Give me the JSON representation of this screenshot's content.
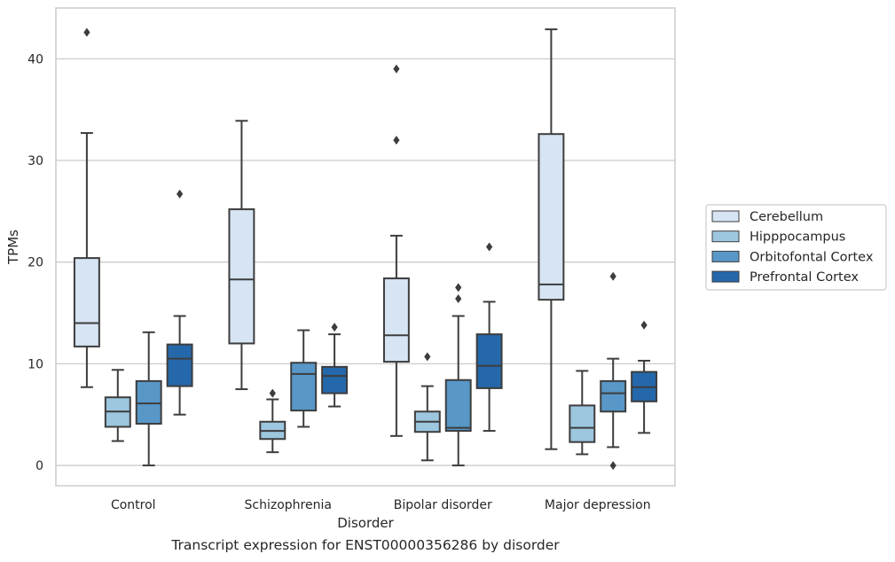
{
  "caption": "Transcript expression for ENST00000356286 by disorder",
  "chart_data": {
    "type": "box",
    "xlabel": "Disorder",
    "ylabel": "TPMs",
    "ylim": [
      -2,
      45
    ],
    "yticks": [
      0,
      10,
      20,
      30,
      40
    ],
    "grid": "horizontal",
    "legend_position": "right",
    "categories": [
      "Control",
      "Schizophrenia",
      "Bipolar disorder",
      "Major depression"
    ],
    "series": [
      {
        "name": "Cerebellum",
        "color": "#d6e4f3",
        "boxes": [
          {
            "whisker_low": 7.7,
            "q1": 11.7,
            "median": 14.0,
            "q3": 20.4,
            "whisker_high": 32.7,
            "outliers": [
              42.6
            ]
          },
          {
            "whisker_low": 7.5,
            "q1": 12.0,
            "median": 18.3,
            "q3": 25.2,
            "whisker_high": 33.9,
            "outliers": []
          },
          {
            "whisker_low": 2.9,
            "q1": 10.2,
            "median": 12.8,
            "q3": 18.4,
            "whisker_high": 22.6,
            "outliers": [
              39.0,
              32.0
            ]
          },
          {
            "whisker_low": 1.6,
            "q1": 16.3,
            "median": 17.8,
            "q3": 32.6,
            "whisker_high": 42.9,
            "outliers": []
          }
        ]
      },
      {
        "name": "Hipppocampus",
        "color": "#9dc6df",
        "boxes": [
          {
            "whisker_low": 2.4,
            "q1": 3.8,
            "median": 5.3,
            "q3": 6.7,
            "whisker_high": 9.4,
            "outliers": []
          },
          {
            "whisker_low": 1.3,
            "q1": 2.6,
            "median": 3.4,
            "q3": 4.3,
            "whisker_high": 6.5,
            "outliers": [
              7.1
            ]
          },
          {
            "whisker_low": 0.5,
            "q1": 3.3,
            "median": 4.3,
            "q3": 5.3,
            "whisker_high": 7.8,
            "outliers": [
              10.7
            ]
          },
          {
            "whisker_low": 1.1,
            "q1": 2.3,
            "median": 3.7,
            "q3": 5.9,
            "whisker_high": 9.3,
            "outliers": []
          }
        ]
      },
      {
        "name": "Orbitofontal Cortex",
        "color": "#5897c7",
        "boxes": [
          {
            "whisker_low": 0.0,
            "q1": 4.1,
            "median": 6.1,
            "q3": 8.3,
            "whisker_high": 13.1,
            "outliers": []
          },
          {
            "whisker_low": 3.8,
            "q1": 5.4,
            "median": 9.0,
            "q3": 10.1,
            "whisker_high": 13.3,
            "outliers": []
          },
          {
            "whisker_low": 0.0,
            "q1": 3.4,
            "median": 3.7,
            "q3": 8.4,
            "whisker_high": 14.7,
            "outliers": [
              17.5,
              16.4
            ]
          },
          {
            "whisker_low": 1.8,
            "q1": 5.3,
            "median": 7.1,
            "q3": 8.3,
            "whisker_high": 10.5,
            "outliers": [
              18.6,
              0.0
            ]
          }
        ]
      },
      {
        "name": "Prefrontal Cortex",
        "color": "#2468ab",
        "boxes": [
          {
            "whisker_low": 5.0,
            "q1": 7.8,
            "median": 10.5,
            "q3": 11.9,
            "whisker_high": 14.7,
            "outliers": [
              26.7
            ]
          },
          {
            "whisker_low": 5.8,
            "q1": 7.1,
            "median": 8.8,
            "q3": 9.7,
            "whisker_high": 12.9,
            "outliers": [
              13.6
            ]
          },
          {
            "whisker_low": 3.4,
            "q1": 7.6,
            "median": 9.8,
            "q3": 12.9,
            "whisker_high": 16.1,
            "outliers": [
              21.5
            ]
          },
          {
            "whisker_low": 3.2,
            "q1": 6.3,
            "median": 7.7,
            "q3": 9.2,
            "whisker_high": 10.3,
            "outliers": [
              13.8
            ]
          }
        ]
      }
    ]
  }
}
